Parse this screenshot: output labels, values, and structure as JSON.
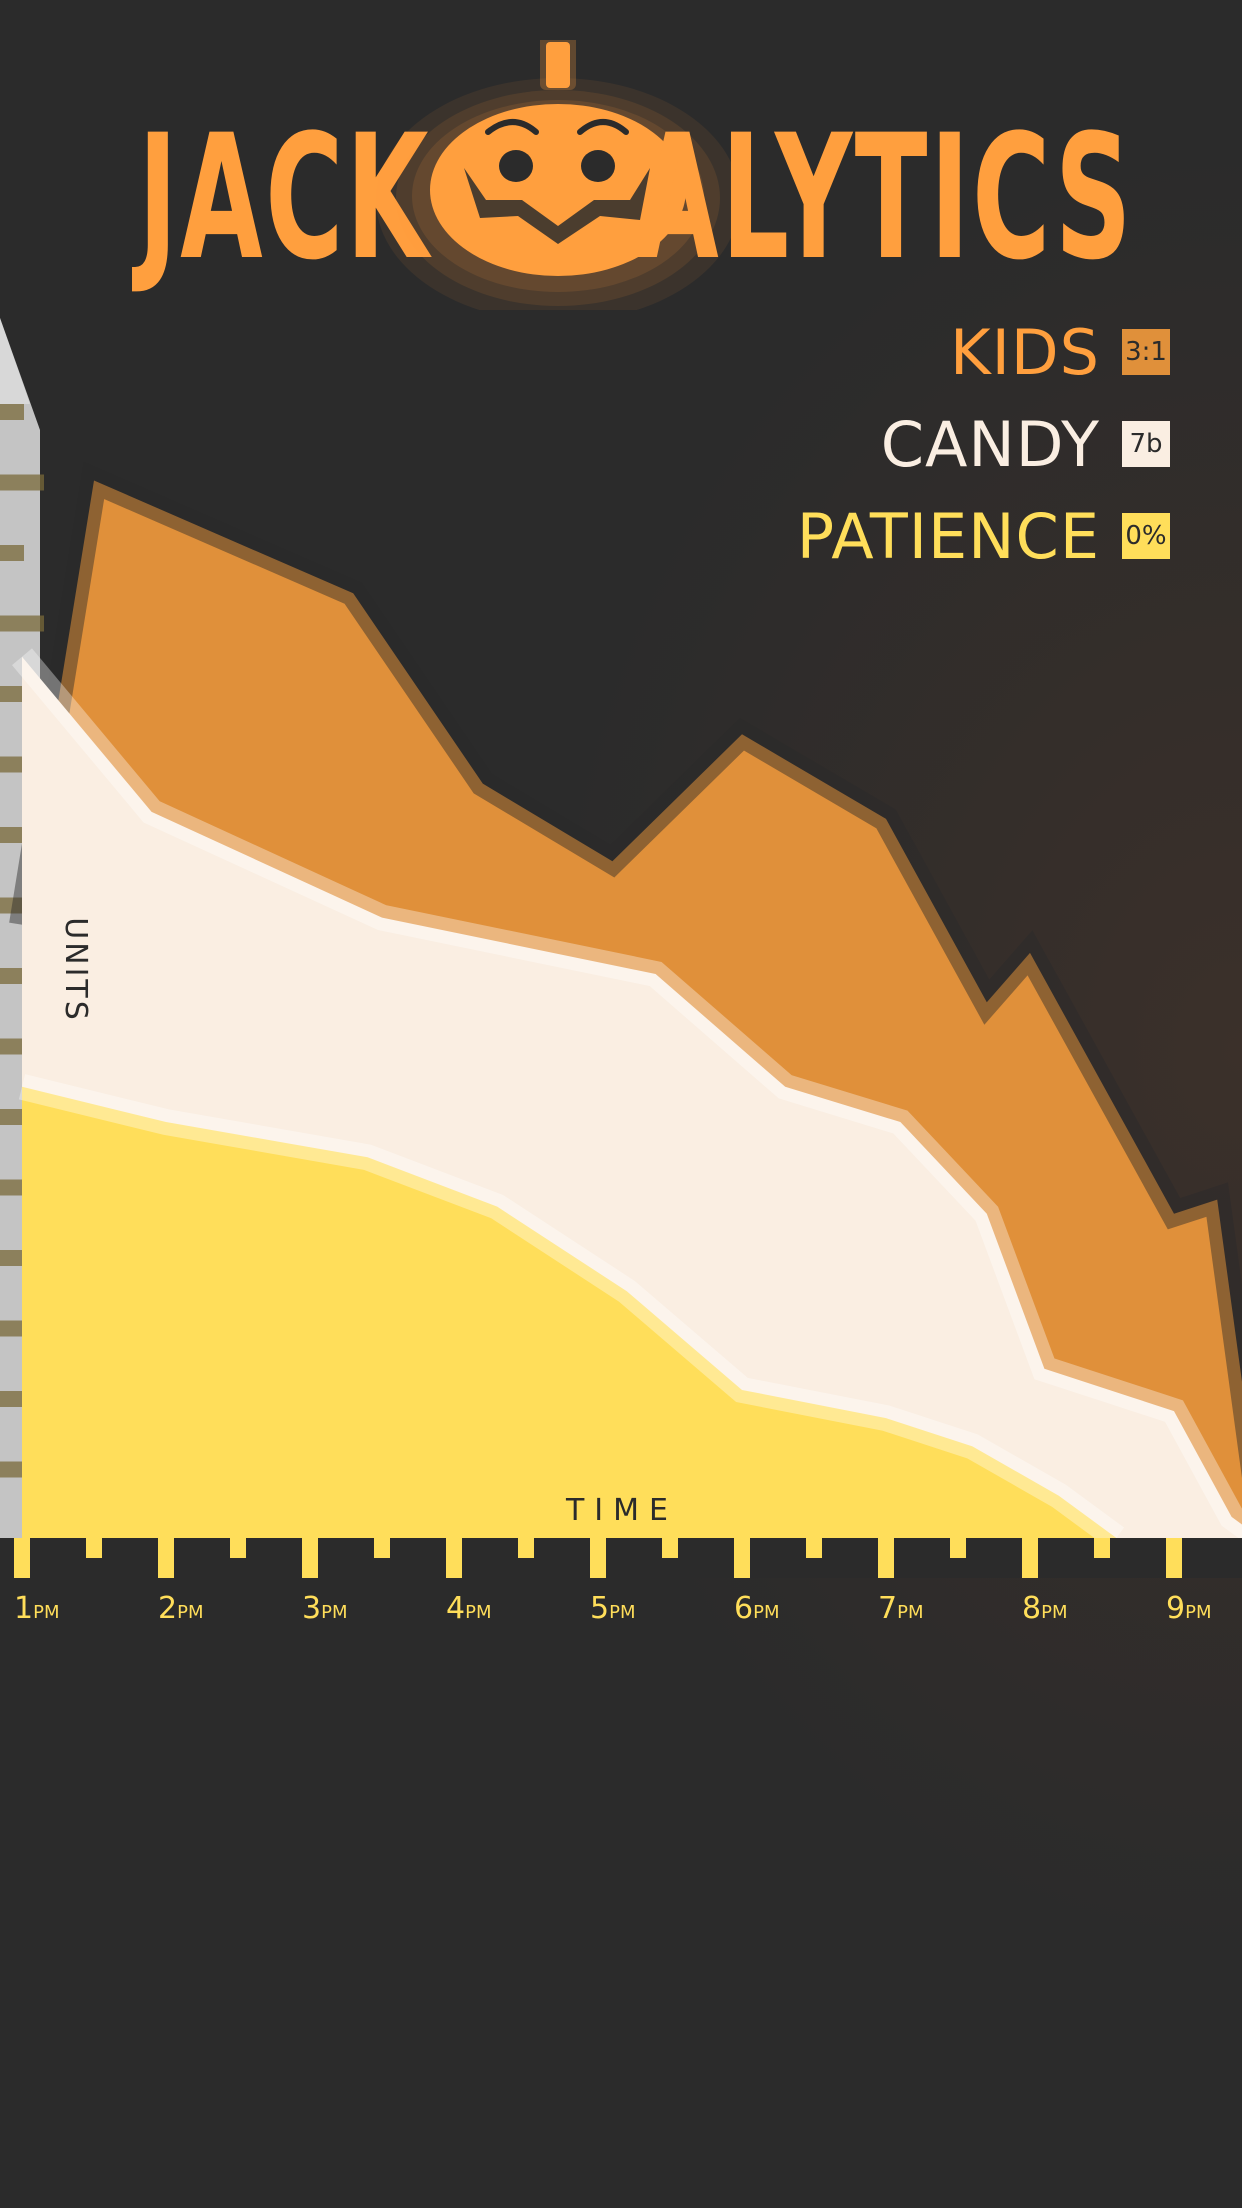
{
  "header": {
    "title_left": "JACK",
    "title_right": "ALYTICS",
    "logo_icon": "pumpkin-icon"
  },
  "colors": {
    "background": "#2b2b2b",
    "kids": "#e0903a",
    "candy": "#faeee2",
    "patience": "#ffde5a",
    "title": "#ff9f3e"
  },
  "legend": [
    {
      "label": "KIDS",
      "badge": "3:1",
      "color": "#ff9f3e",
      "badge_color": "#e0903a"
    },
    {
      "label": "CANDY",
      "badge": "7b",
      "color": "#faeee2",
      "badge_color": "#faeee2"
    },
    {
      "label": "PATIENCE",
      "badge": "0%",
      "color": "#ffde5a",
      "badge_color": "#ffde5a"
    }
  ],
  "chart_data": {
    "type": "area",
    "stacked": false,
    "xlabel": "TIME",
    "ylabel": "UNITS",
    "x": [
      "1PM",
      "2PM",
      "3PM",
      "4PM",
      "5PM",
      "6PM",
      "7PM",
      "8PM",
      "9PM"
    ],
    "x_ticks": [
      {
        "hour": "1",
        "suffix": "PM"
      },
      {
        "hour": "2",
        "suffix": "PM"
      },
      {
        "hour": "3",
        "suffix": "PM"
      },
      {
        "hour": "4",
        "suffix": "PM"
      },
      {
        "hour": "5",
        "suffix": "PM"
      },
      {
        "hour": "6",
        "suffix": "PM"
      },
      {
        "hour": "7",
        "suffix": "PM"
      },
      {
        "hour": "8",
        "suffix": "PM"
      },
      {
        "hour": "9",
        "suffix": "PM"
      }
    ],
    "xlim": [
      1,
      9.6
    ],
    "ylim": [
      0,
      16
    ],
    "y_ticks": 16,
    "grid": false,
    "legend_position": "top-right",
    "series": [
      {
        "name": "KIDS",
        "color": "#e0903a",
        "points": [
          [
            1.0,
            8.7
          ],
          [
            1.5,
            15.0
          ],
          [
            3.3,
            13.4
          ],
          [
            4.2,
            10.7
          ],
          [
            5.1,
            9.6
          ],
          [
            6.0,
            11.4
          ],
          [
            7.0,
            10.2
          ],
          [
            7.7,
            7.6
          ],
          [
            8.0,
            8.3
          ],
          [
            9.0,
            4.6
          ],
          [
            9.3,
            4.8
          ],
          [
            9.6,
            0.3
          ]
        ]
      },
      {
        "name": "CANDY",
        "color": "#faeee2",
        "points": [
          [
            1.0,
            12.5
          ],
          [
            1.9,
            10.3
          ],
          [
            3.5,
            8.8
          ],
          [
            5.4,
            8.0
          ],
          [
            6.3,
            6.4
          ],
          [
            7.1,
            5.9
          ],
          [
            7.7,
            4.6
          ],
          [
            8.1,
            2.4
          ],
          [
            9.0,
            1.8
          ],
          [
            9.4,
            0.3
          ],
          [
            9.6,
            0.0
          ]
        ]
      },
      {
        "name": "PATIENCE",
        "color": "#ffde5a",
        "points": [
          [
            1.0,
            6.4
          ],
          [
            2.0,
            5.9
          ],
          [
            3.4,
            5.4
          ],
          [
            4.3,
            4.7
          ],
          [
            5.2,
            3.5
          ],
          [
            6.0,
            2.1
          ],
          [
            7.0,
            1.7
          ],
          [
            7.6,
            1.3
          ],
          [
            8.2,
            0.6
          ],
          [
            8.6,
            0.0
          ]
        ]
      }
    ]
  }
}
